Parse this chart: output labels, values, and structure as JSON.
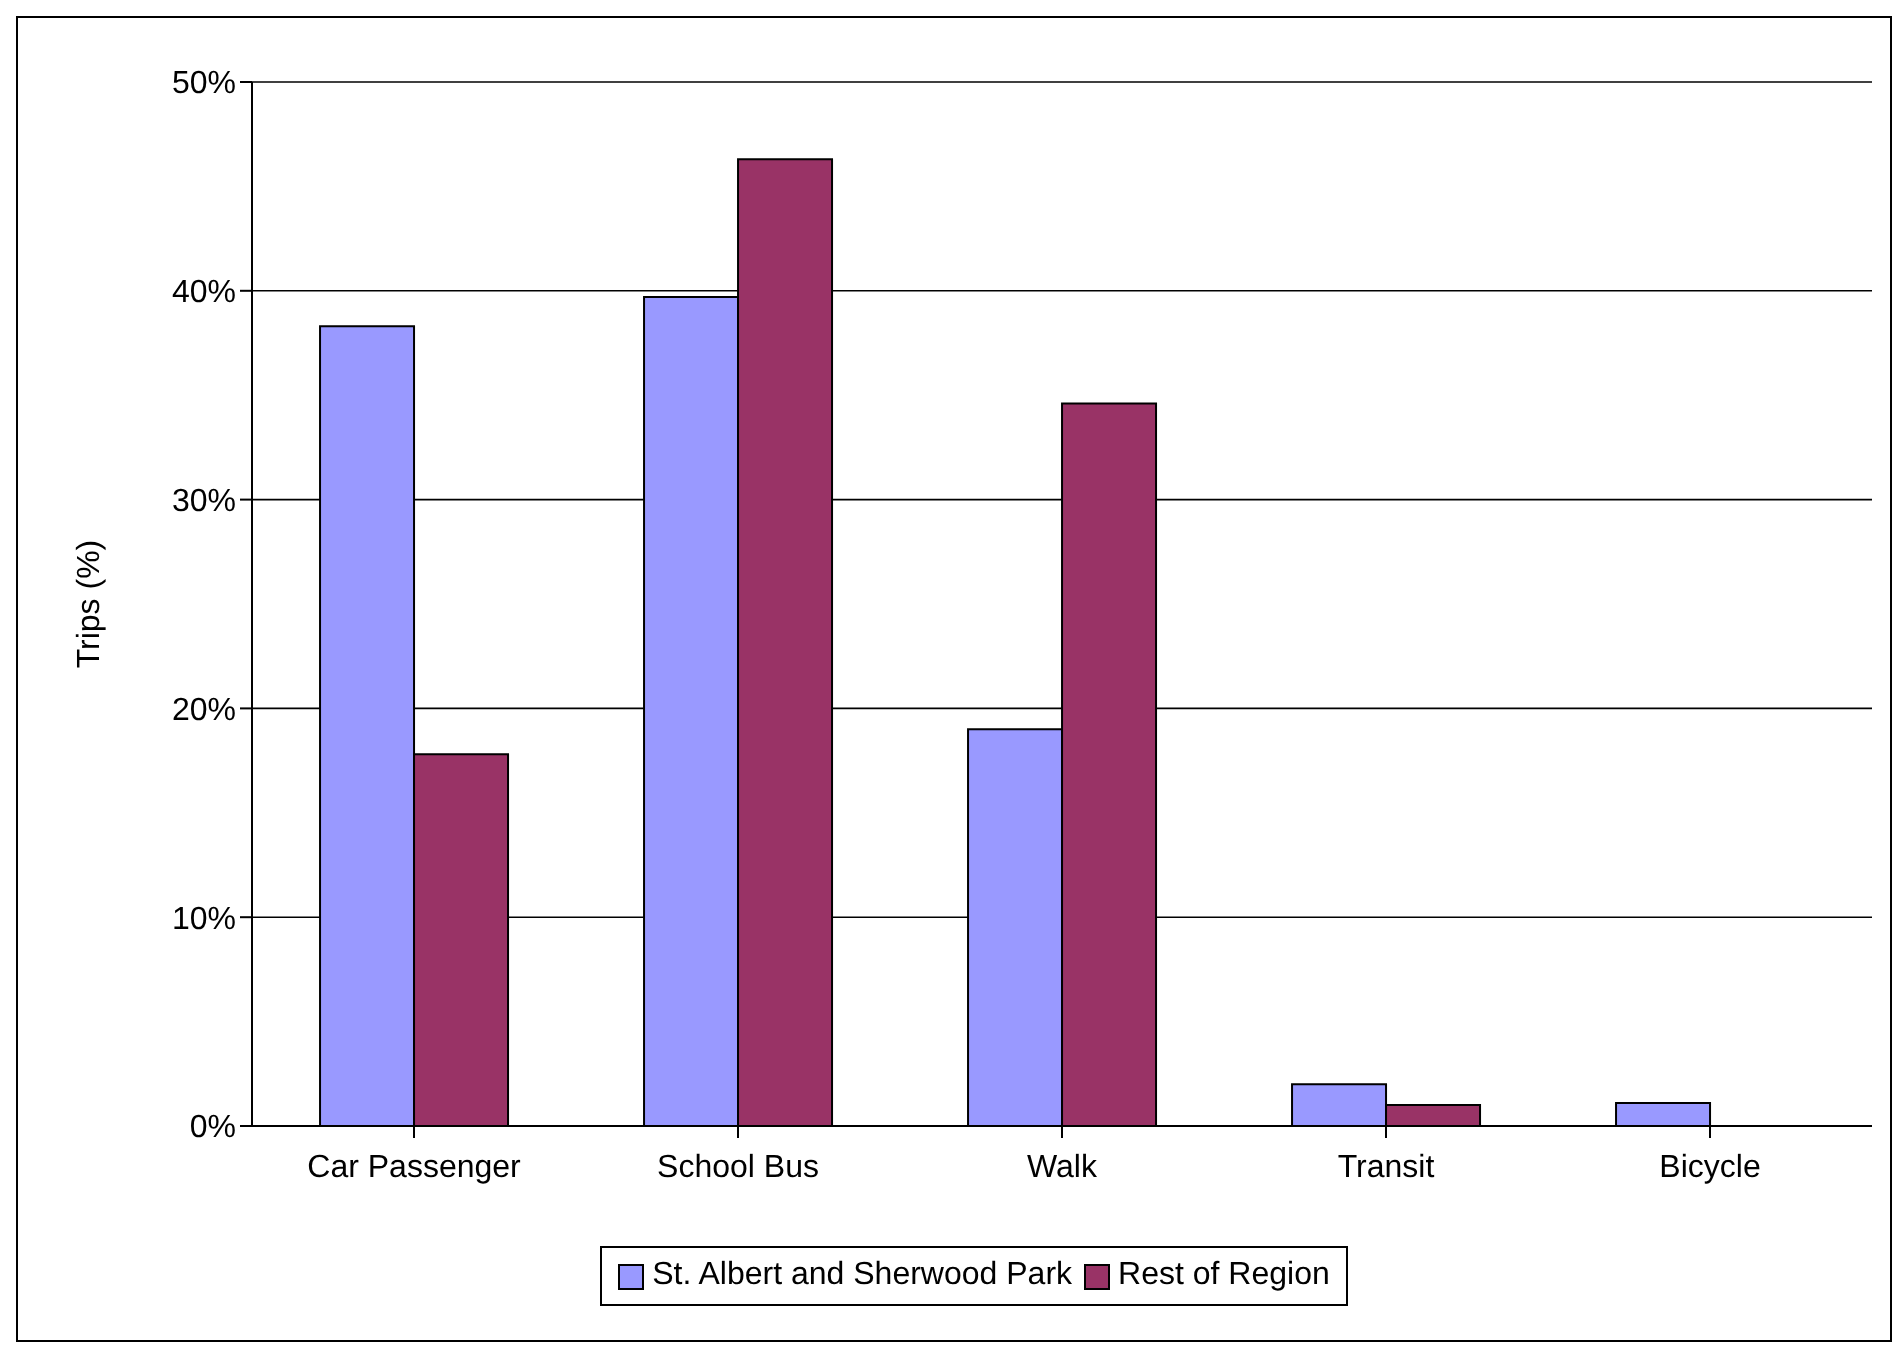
{
  "chart_data": {
    "type": "bar",
    "ylabel": "Trips (%)",
    "categories": [
      "Car Passenger",
      "School Bus",
      "Walk",
      "Transit",
      "Bicycle"
    ],
    "series": [
      {
        "name": "St. Albert and Sherwood Park",
        "color": "#9999ff",
        "values": [
          38.3,
          39.7,
          19.0,
          2.0,
          1.1
        ]
      },
      {
        "name": "Rest of Region",
        "color": "#993366",
        "values": [
          17.8,
          46.3,
          34.6,
          1.0,
          null
        ]
      }
    ],
    "ylim": [
      0,
      50
    ],
    "yticks": [
      {
        "value": 0,
        "label": "0%"
      },
      {
        "value": 10,
        "label": "10%"
      },
      {
        "value": 20,
        "label": "20%"
      },
      {
        "value": 30,
        "label": "30%"
      },
      {
        "value": 40,
        "label": "40%"
      },
      {
        "value": 50,
        "label": "50%"
      }
    ],
    "grid": "y",
    "legend": "bottom"
  }
}
